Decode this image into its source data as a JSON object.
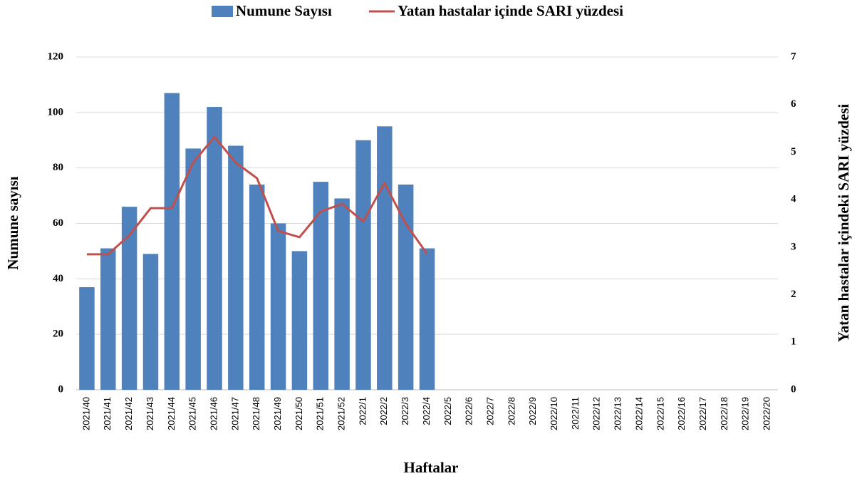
{
  "chart_data": {
    "type": "bar-line",
    "categories": [
      "2021/40",
      "2021/41",
      "2021/42",
      "2021/43",
      "2021/44",
      "2021/45",
      "2021/46",
      "2021/47",
      "2021/48",
      "2021/49",
      "2021/50",
      "2021/51",
      "2021/52",
      "2022/1",
      "2022/2",
      "2022/3",
      "2022/4",
      "2022/5",
      "2022/6",
      "2022/7",
      "2022/8",
      "2022/9",
      "2022/10",
      "2022/11",
      "2022/12",
      "2022/13",
      "2022/14",
      "2022/15",
      "2022/16",
      "2022/17",
      "2022/18",
      "2022/19",
      "2022/20"
    ],
    "series": [
      {
        "name": "Numune Sayısı",
        "type": "bar",
        "color": "#4f81bd",
        "values": [
          37,
          51,
          66,
          49,
          107,
          87,
          102,
          88,
          74,
          60,
          50,
          75,
          69,
          90,
          95,
          74,
          51,
          null,
          null,
          null,
          null,
          null,
          null,
          null,
          null,
          null,
          null,
          null,
          null,
          null,
          null,
          null,
          null
        ]
      },
      {
        "name": "Yatan hastalar içinde SARI yüzdesi",
        "type": "line",
        "axis": "y2",
        "color": "#c0504d",
        "values": [
          2.85,
          2.85,
          3.25,
          3.82,
          3.82,
          4.78,
          5.32,
          4.78,
          4.45,
          3.34,
          3.21,
          3.75,
          3.91,
          3.54,
          4.35,
          3.49,
          2.86,
          null,
          null,
          null,
          null,
          null,
          null,
          null,
          null,
          null,
          null,
          null,
          null,
          null,
          null,
          null,
          null
        ]
      }
    ],
    "x_label": "Haftalar",
    "y_label": "Numune sayısı",
    "y2_label": "Yatan hastalar içindeki SARI yüzdesi",
    "ylim": [
      0,
      120
    ],
    "yticks": [
      0,
      20,
      40,
      60,
      80,
      100,
      120
    ],
    "y2lim": [
      0,
      7
    ],
    "y2ticks": [
      0,
      1,
      2,
      3,
      4,
      5,
      6,
      7
    ],
    "grid": true,
    "legend": "top"
  }
}
